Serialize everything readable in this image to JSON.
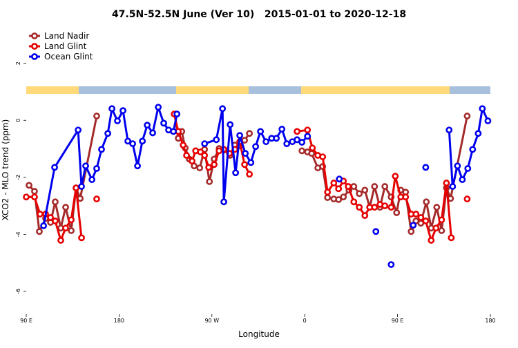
{
  "chart_data": {
    "type": "line",
    "title": "47.5N-52.5N June (Ver 10)   2015-01-01 to 2020-12-18",
    "x_label": "Longitude",
    "y_label": "XCO2 - MLO trend (ppm)",
    "xlim": [
      90,
      540
    ],
    "xticks": [
      {
        "value": 90,
        "label": "90 E"
      },
      {
        "value": 180,
        "label": "180"
      },
      {
        "value": 270,
        "label": "90 W"
      },
      {
        "value": 360,
        "label": "0"
      },
      {
        "value": 450,
        "label": "90 E"
      },
      {
        "value": 540,
        "label": "180"
      }
    ],
    "ylim": [
      -6.8,
      3.3
    ],
    "yticks": [
      -6,
      -4,
      -2,
      0,
      2
    ],
    "legend": "top-left",
    "series": [
      {
        "name": "Land Nadir",
        "color": "#a52a2a",
        "x": [
          92.7,
          98.0,
          102.7,
          108.8,
          113.5,
          118.1,
          123.5,
          128.2,
          133.6,
          138.3,
          142.3,
          158.3,
          null,
          234.1,
          237.4,
          240.8,
          244.1,
          248.1,
          252.8,
          258.2,
          262.9,
          267.6,
          272.2,
          277.0,
          282.3,
          287.7,
          292.3,
          297.0,
          301.7,
          306.4,
          null,
          357.3,
          362.7,
          366.7,
          372.7,
          377.4,
          382.1,
          388.2,
          392.8,
          397.5,
          402.9,
          407.6,
          412.9,
          418.3,
          423.0,
          427.7,
          433.0,
          437.7,
          443.8,
          449.1,
          453.1,
          457.8,
          463.2,
          467.9,
          472.6,
          477.9,
          482.6,
          488.0,
          492.7,
          497.4,
          501.4,
          517.5
        ],
        "values": [
          -2.28,
          -2.49,
          -3.9,
          -3.44,
          -3.58,
          -2.86,
          -3.78,
          -3.05,
          -3.87,
          -2.37,
          -2.74,
          0.15,
          null,
          0.22,
          -0.63,
          -0.39,
          -0.97,
          -1.36,
          -1.6,
          -1.67,
          -1.02,
          -2.15,
          -1.36,
          -0.99,
          -1.04,
          -1.23,
          -0.87,
          -0.9,
          -0.7,
          -0.46,
          null,
          -1.07,
          -1.11,
          -1.16,
          -1.67,
          -1.62,
          -2.71,
          -2.76,
          -2.78,
          -2.69,
          -2.45,
          -2.32,
          -2.57,
          -2.45,
          -3.05,
          -2.32,
          -3.05,
          -2.32,
          -2.69,
          -3.24,
          -2.45,
          -2.52,
          -3.9,
          -3.53,
          -3.61,
          -2.86,
          -3.78,
          -3.05,
          -3.87,
          -2.37,
          -2.74,
          0.15
        ]
      },
      {
        "name": "Land Glint",
        "color": "#e60000",
        "x": [
          90.0,
          98.0,
          103.4,
          108.8,
          113.5,
          118.1,
          123.5,
          128.2,
          133.6,
          138.3,
          143.6,
          null,
          158.3,
          null,
          233.4,
          237.4,
          242.1,
          245.4,
          250.8,
          254.2,
          258.9,
          262.9,
          266.9,
          272.2,
          277.0,
          281.6,
          287.0,
          292.3,
          297.0,
          301.7,
          306.4,
          null,
          352.6,
          362.7,
          367.4,
          372.7,
          377.4,
          382.1,
          388.2,
          392.8,
          397.5,
          402.2,
          407.6,
          412.9,
          418.3,
          423.0,
          427.7,
          433.0,
          437.7,
          443.8,
          447.8,
          453.1,
          457.8,
          463.2,
          467.9,
          472.6,
          477.3,
          482.6,
          487.3,
          492.7,
          497.4,
          502.1,
          null,
          517.5
        ],
        "values": [
          -2.69,
          -2.69,
          -3.29,
          -3.29,
          -3.41,
          -3.53,
          -4.21,
          -3.78,
          -3.49,
          -2.37,
          -4.12,
          null,
          -2.76,
          null,
          0.22,
          -0.39,
          -0.87,
          -1.23,
          -1.43,
          -1.07,
          -1.11,
          -1.23,
          -1.65,
          -1.55,
          -1.07,
          -1.02,
          -1.16,
          -1.02,
          -0.75,
          -1.55,
          -1.89,
          null,
          -0.39,
          -0.34,
          -0.97,
          -1.23,
          -1.28,
          -2.52,
          -2.2,
          -2.4,
          -2.13,
          -2.32,
          -2.86,
          -3.05,
          -3.34,
          -3.05,
          -3.05,
          -2.95,
          -3.0,
          -3.05,
          -1.96,
          -2.69,
          -2.69,
          -3.29,
          -3.29,
          -3.41,
          -3.53,
          -4.21,
          -3.78,
          -3.49,
          -2.2,
          -4.12,
          null,
          -2.76
        ]
      },
      {
        "name": "Ocean Glint",
        "color": "#0000ee",
        "x": [
          106.8,
          117.5,
          140.3,
          143.6,
          147.6,
          153.7,
          158.3,
          163.0,
          169.1,
          173.1,
          178.4,
          183.8,
          188.5,
          193.2,
          197.9,
          202.6,
          207.3,
          212.6,
          218.0,
          223.3,
          228.0,
          232.7,
          236.1,
          null,
          262.9,
          274.3,
          280.3,
          281.6,
          287.7,
          293.0,
          297.0,
          302.4,
          307.8,
          312.4,
          317.1,
          322.5,
          327.9,
          332.5,
          337.9,
          342.6,
          348.0,
          352.6,
          357.3,
          362.7,
          null,
          393.5,
          null,
          429.0,
          null,
          443.8,
          null,
          465.2,
          null,
          477.3,
          null,
          500.0,
          503.4,
          508.1,
          512.8,
          518.1,
          522.8,
          528.2,
          532.2,
          537.6
        ],
        "values": [
          -3.7,
          -1.65,
          -0.34,
          -2.32,
          -1.6,
          -2.08,
          -1.69,
          -1.02,
          -0.46,
          0.41,
          -0.02,
          0.34,
          -0.73,
          -0.82,
          -1.6,
          -0.73,
          -0.17,
          -0.44,
          0.46,
          -0.1,
          -0.34,
          -0.39,
          0.22,
          null,
          -0.82,
          -0.68,
          0.41,
          -2.86,
          -0.15,
          -1.84,
          -0.53,
          -1.16,
          -1.48,
          -0.92,
          -0.39,
          -0.75,
          -0.63,
          -0.63,
          -0.31,
          -0.82,
          -0.75,
          -0.68,
          -0.77,
          -0.56,
          null,
          -2.06,
          null,
          -3.9,
          null,
          -5.06,
          null,
          -3.68,
          null,
          -1.65,
          null,
          -0.34,
          -2.32,
          -1.6,
          -2.08,
          -1.69,
          -1.02,
          -0.46,
          0.41,
          -0.02
        ]
      }
    ]
  }
}
